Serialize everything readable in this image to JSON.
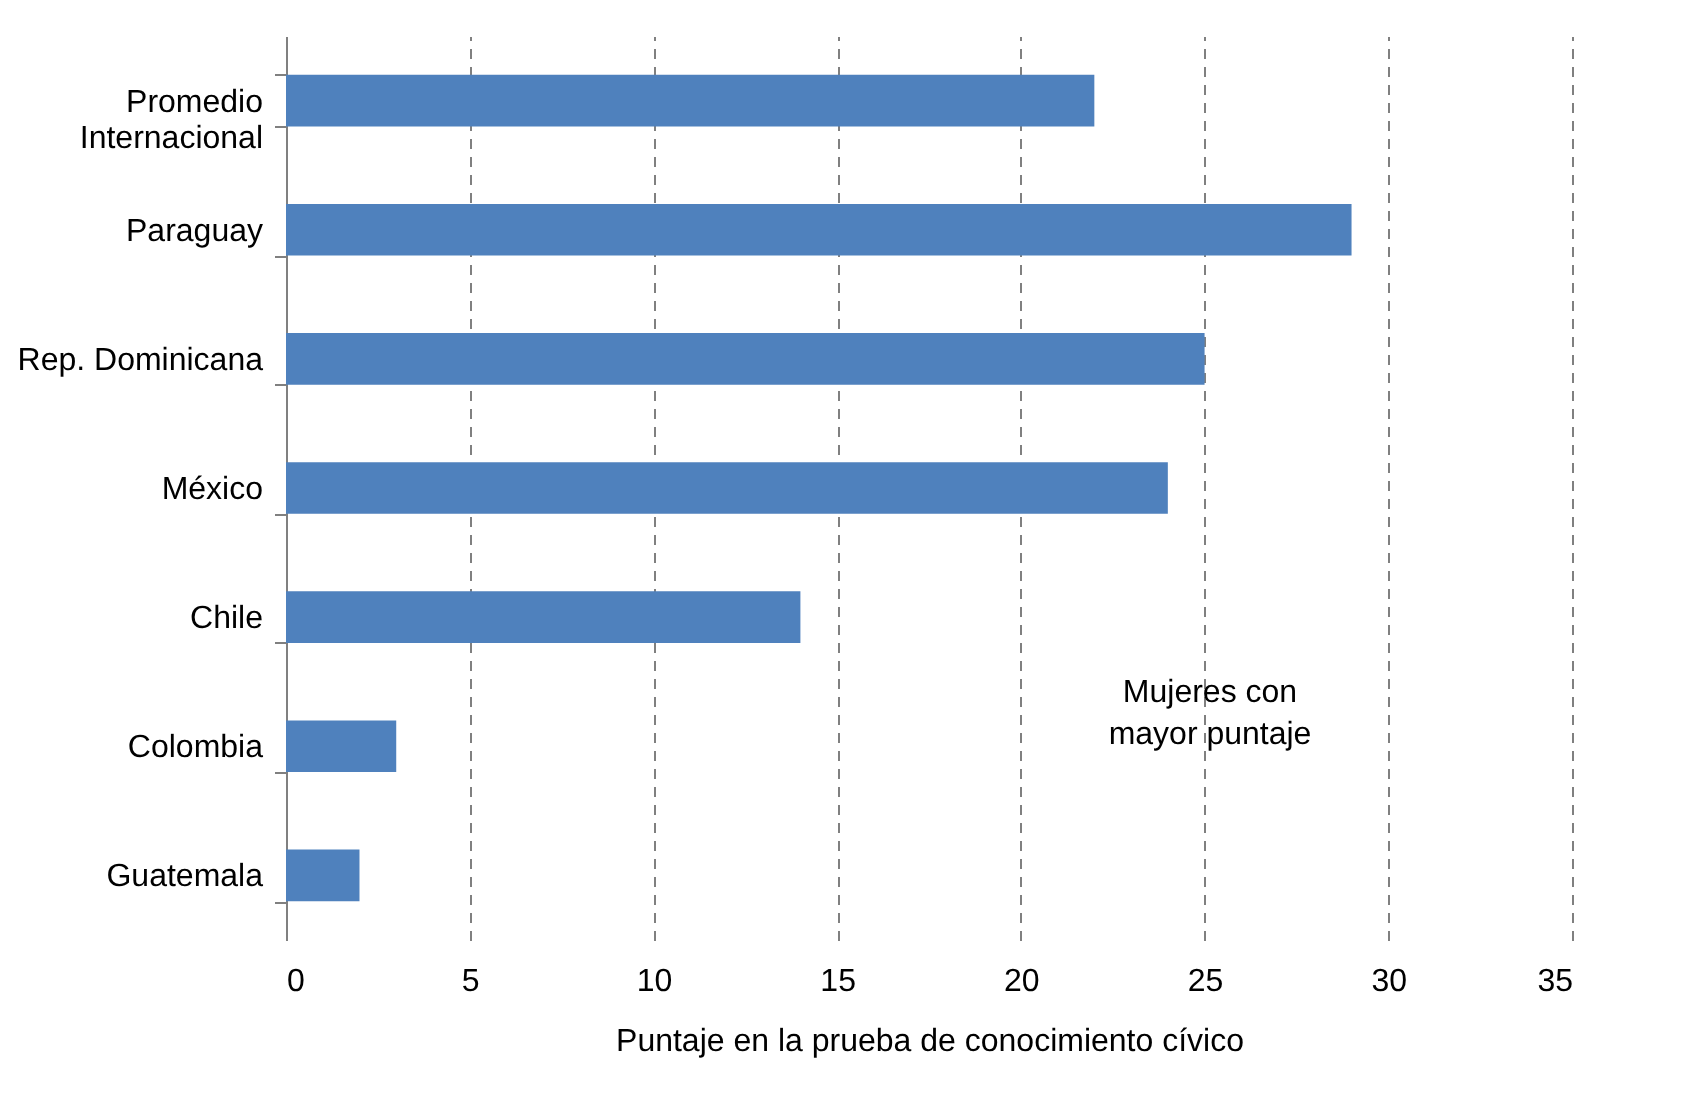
{
  "chart_data": {
    "type": "bar",
    "orientation": "horizontal",
    "xlabel": "Puntaje en la prueba de conocimiento cívico",
    "categories": [
      "Promedio Internacional",
      "Paraguay",
      "Rep. Dominicana",
      "México",
      "Chile",
      "Colombia",
      "Guatemala"
    ],
    "values": [
      22,
      29,
      25,
      24,
      14,
      3,
      2
    ],
    "color": "#4f81bd",
    "xlim": [
      0,
      35
    ],
    "xticks": [
      0,
      5,
      10,
      15,
      20,
      25,
      30,
      35
    ],
    "grid": "x",
    "annotations": [
      "Mujeres con\nmayor puntaje"
    ]
  }
}
